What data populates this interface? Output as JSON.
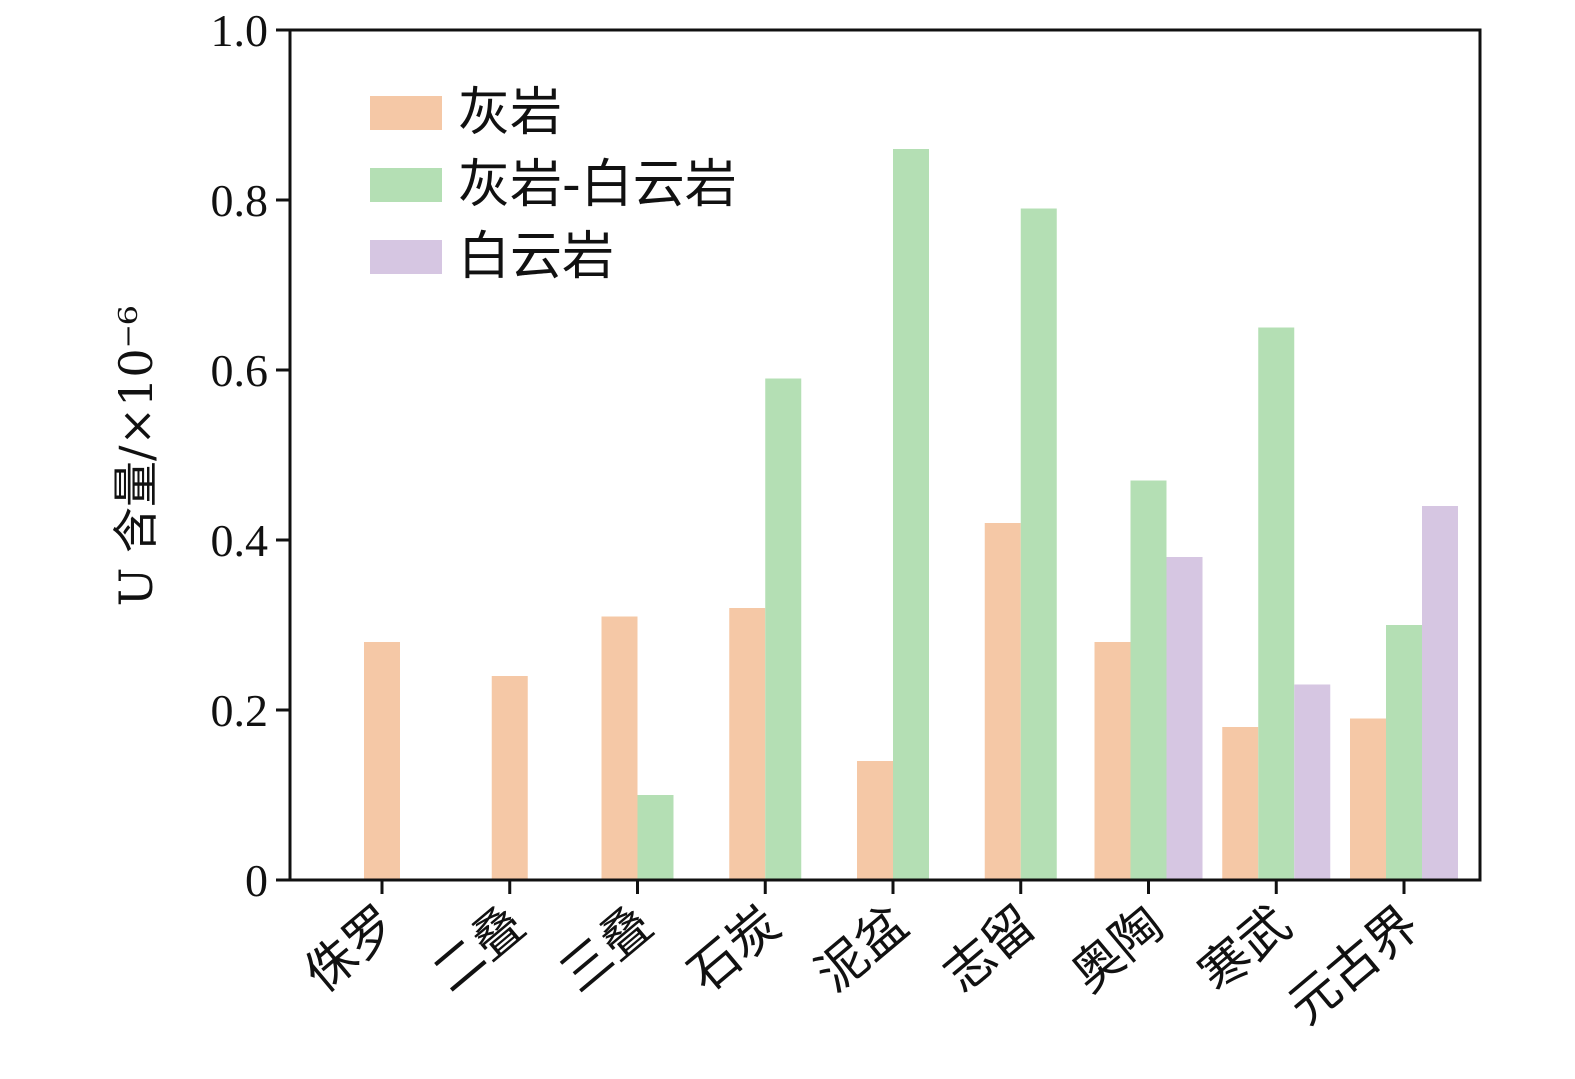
{
  "chart_data": {
    "type": "bar",
    "ylabel": "U 含量/×10⁻⁶",
    "xlabel": "",
    "ylim": [
      0,
      1.0
    ],
    "yticks": [
      {
        "value": 0,
        "label": "0"
      },
      {
        "value": 0.2,
        "label": "0.2"
      },
      {
        "value": 0.4,
        "label": "0.4"
      },
      {
        "value": 0.6,
        "label": "0.6"
      },
      {
        "value": 0.8,
        "label": "0.8"
      },
      {
        "value": 1.0,
        "label": "1.0"
      }
    ],
    "categories": [
      "侏罗",
      "二叠",
      "三叠",
      "石炭",
      "泥盆",
      "志留",
      "奥陶",
      "寒武",
      "元古界"
    ],
    "series": [
      {
        "name": "灰岩",
        "color": "#f5c8a6",
        "values": [
          0.28,
          0.24,
          0.31,
          0.32,
          0.14,
          0.42,
          0.28,
          0.18,
          0.19
        ]
      },
      {
        "name": "灰岩-白云岩",
        "color": "#b4dfb4",
        "values": [
          null,
          null,
          0.1,
          0.59,
          0.86,
          0.79,
          0.47,
          0.65,
          0.3
        ]
      },
      {
        "name": "白云岩",
        "color": "#d6c6e2",
        "values": [
          null,
          null,
          null,
          null,
          null,
          null,
          0.38,
          0.23,
          0.44
        ]
      }
    ],
    "legend_position": "top-left",
    "grid": false
  }
}
